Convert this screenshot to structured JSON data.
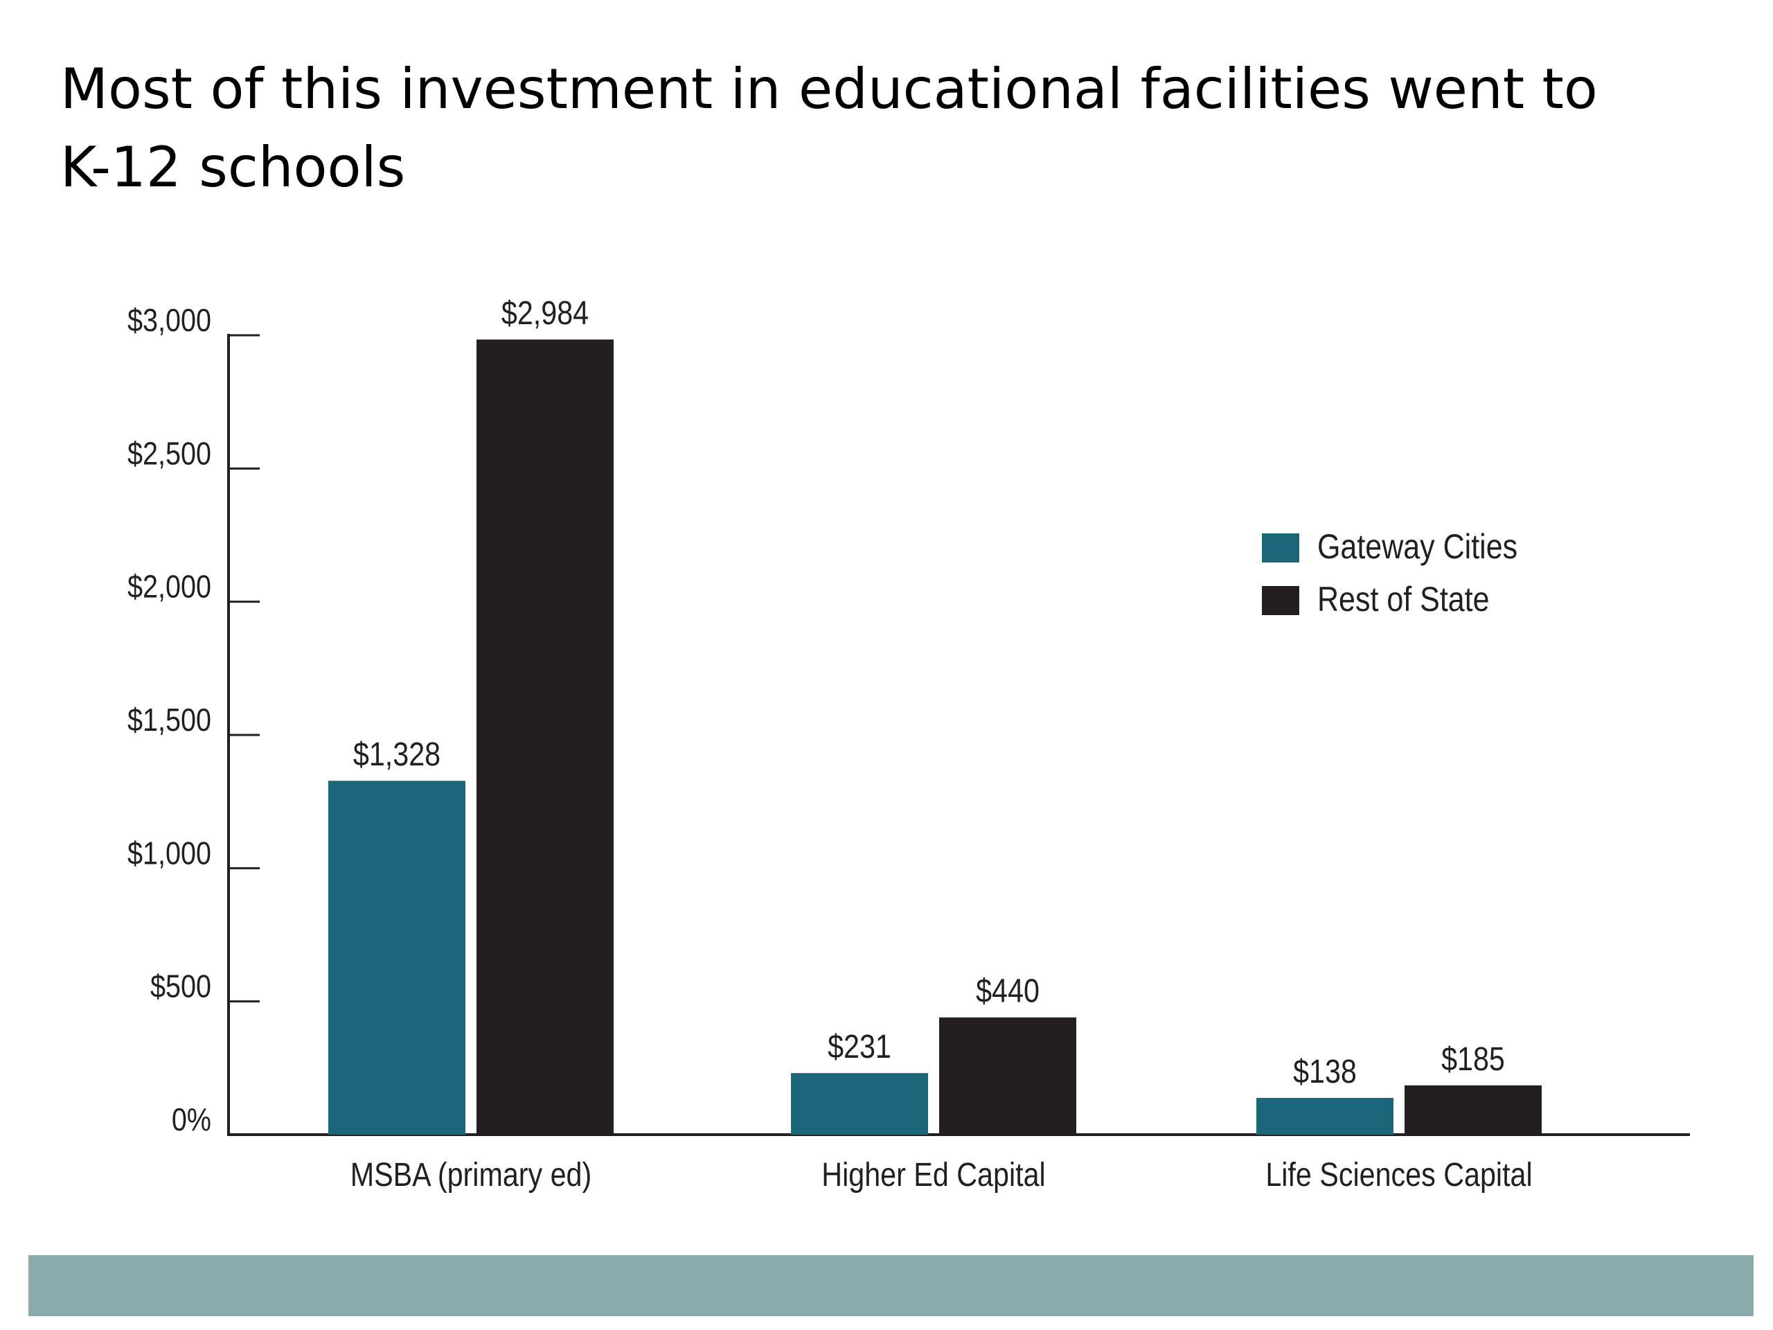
{
  "title": {
    "line1": "Most of this investment in educational facilities went to",
    "line2": "K-12 schools"
  },
  "colors": {
    "gateway": "#1b6779",
    "rest": "#231f20",
    "axis": "#231f20",
    "text": "#231f20",
    "footer_bar": "#8aabab"
  },
  "chart_data": {
    "type": "bar",
    "categories": [
      "MSBA (primary ed)",
      "Higher Ed Capital",
      "Life Sciences Capital"
    ],
    "series": [
      {
        "name": "Gateway Cities",
        "values": [
          1328,
          231,
          138
        ],
        "labels": [
          "$1,328",
          "$231",
          "$138"
        ]
      },
      {
        "name": "Rest of State",
        "values": [
          2984,
          440,
          185
        ],
        "labels": [
          "$2,984",
          "$440",
          "$185"
        ]
      }
    ],
    "yticks": [
      0,
      500,
      1000,
      1500,
      2000,
      2500,
      3000
    ],
    "ytick_labels": [
      "0%",
      "$500",
      "$1,000",
      "$1,500",
      "$2,000",
      "$2,500",
      "$3,000"
    ],
    "ylim": [
      0,
      3000
    ],
    "legend_position": "right",
    "grid": false
  }
}
